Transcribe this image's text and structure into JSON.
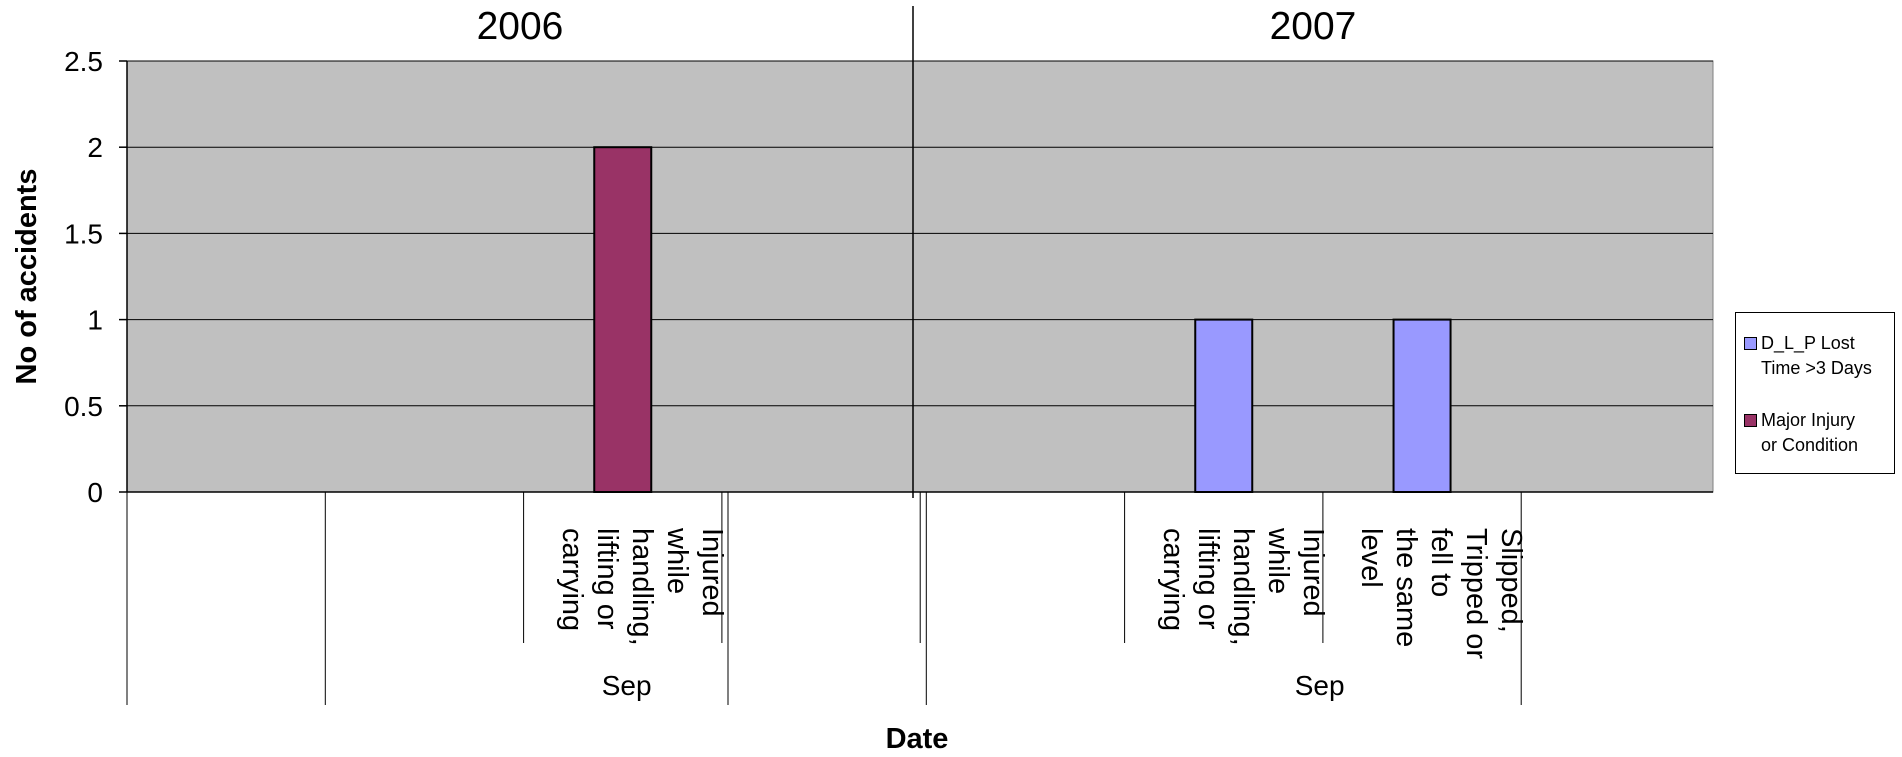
{
  "chart_data": {
    "type": "bar",
    "ylabel": "No of accidents",
    "xlabel": "Date",
    "ylim": [
      0,
      2.5
    ],
    "y_ticks": [
      "0",
      "0.5",
      "1",
      "1.5",
      "2",
      "2.5"
    ],
    "grid": true,
    "legend_position": "right",
    "plot_background": "#C0C0C0",
    "groups": [
      {
        "year": "2006",
        "month": "Sep",
        "categories": [
          "",
          "",
          "Injured while handling, lifting or carrying",
          ""
        ]
      },
      {
        "year": "2007",
        "month": "Sep",
        "categories": [
          "",
          "",
          "Injured while handling, lifting or carrying",
          "Slipped, Tripped or fell to the same level"
        ]
      }
    ],
    "series": [
      {
        "name": "D_L_P Lost Time >3 Days",
        "color": "#9999FF",
        "values": [
          [
            0,
            0,
            0,
            0
          ],
          [
            0,
            0,
            1,
            1
          ]
        ]
      },
      {
        "name": "Major Injury or Condition",
        "color": "#993366",
        "values": [
          [
            0,
            0,
            2,
            0
          ],
          [
            0,
            0,
            0,
            0
          ]
        ]
      }
    ]
  },
  "legend": {
    "items": [
      {
        "label": "D_L_P Lost\nTime >3 Days",
        "color": "#9999FF"
      },
      {
        "label": "Major Injury\nor  Condition",
        "color": "#993366"
      }
    ]
  }
}
